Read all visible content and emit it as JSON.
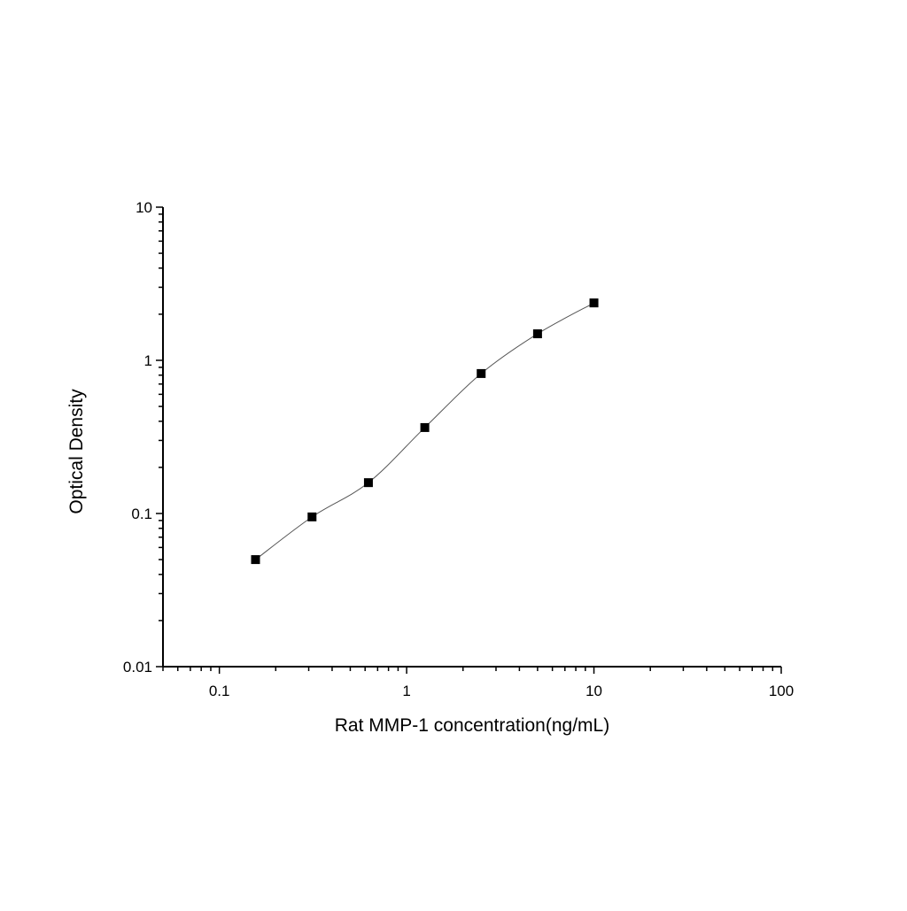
{
  "chart_data": {
    "type": "scatter",
    "title": "",
    "xlabel": "Rat MMP-1 concentration(ng/mL)",
    "ylabel": "Optical Density",
    "xscale": "log",
    "yscale": "log",
    "xlim": [
      0.05,
      100
    ],
    "ylim": [
      0.01,
      10
    ],
    "xticks": [
      0.1,
      1,
      10,
      100
    ],
    "xtick_labels": [
      "0.1",
      "1",
      "10",
      "100"
    ],
    "yticks": [
      0.01,
      0.1,
      1,
      10
    ],
    "ytick_labels": [
      "0.01",
      "0.1",
      "1",
      "10"
    ],
    "grid": false,
    "legend": "none",
    "series": [
      {
        "marker": "square",
        "color": "#000000",
        "fit_line": "smooth curve",
        "fit_color": "#555555",
        "x": [
          0.156,
          0.3125,
          0.625,
          1.25,
          2.5,
          5,
          10
        ],
        "y": [
          0.05,
          0.095,
          0.159,
          0.364,
          0.82,
          1.49,
          2.37
        ]
      }
    ]
  }
}
